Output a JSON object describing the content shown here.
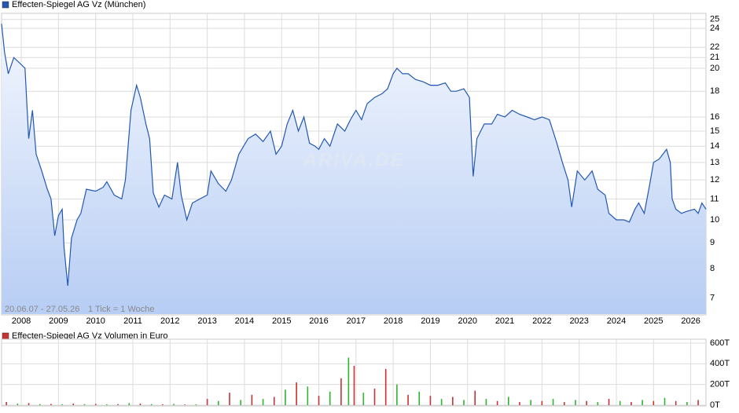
{
  "chart_data": [
    {
      "type": "line",
      "title": "Effecten-Spiegel AG Vz (München)",
      "color": "#2358b0",
      "area": true,
      "log_scale": true,
      "grid": true,
      "date_range": "20.06.07 - 27.05.26",
      "tick_note": "1 Tick = 1 Woche",
      "watermark": "ARIVA.DE",
      "xlim": [
        2007.47,
        2026.41
      ],
      "xticks": [
        2008,
        2009,
        2010,
        2011,
        2012,
        2013,
        2014,
        2015,
        2016,
        2017,
        2018,
        2019,
        2020,
        2021,
        2022,
        2023,
        2024,
        2025,
        2026
      ],
      "ylim": [
        6.5,
        25.7
      ],
      "yticks": [
        7,
        8,
        9,
        10,
        11,
        12,
        13,
        14,
        15,
        16,
        18,
        20,
        21,
        22,
        24,
        25
      ],
      "x": [
        2007.47,
        2007.55,
        2007.65,
        2007.8,
        2007.95,
        2008.1,
        2008.2,
        2008.3,
        2008.4,
        2008.55,
        2008.7,
        2008.8,
        2008.9,
        2009.0,
        2009.1,
        2009.15,
        2009.25,
        2009.35,
        2009.5,
        2009.6,
        2009.75,
        2010.0,
        2010.2,
        2010.3,
        2010.5,
        2010.7,
        2010.8,
        2010.95,
        2011.1,
        2011.2,
        2011.35,
        2011.45,
        2011.55,
        2011.7,
        2011.85,
        2012.05,
        2012.2,
        2012.3,
        2012.45,
        2012.6,
        2012.8,
        2013.0,
        2013.1,
        2013.3,
        2013.5,
        2013.65,
        2013.85,
        2014.1,
        2014.3,
        2014.5,
        2014.7,
        2014.85,
        2015.0,
        2015.15,
        2015.3,
        2015.45,
        2015.6,
        2015.75,
        2015.9,
        2016.0,
        2016.15,
        2016.3,
        2016.5,
        2016.7,
        2016.85,
        2017.0,
        2017.15,
        2017.3,
        2017.5,
        2017.7,
        2017.85,
        2018.0,
        2018.1,
        2018.25,
        2018.4,
        2018.6,
        2018.8,
        2019.0,
        2019.2,
        2019.4,
        2019.55,
        2019.7,
        2019.9,
        2020.05,
        2020.15,
        2020.25,
        2020.45,
        2020.65,
        2020.8,
        2021.0,
        2021.2,
        2021.4,
        2021.6,
        2021.8,
        2022.0,
        2022.2,
        2022.4,
        2022.55,
        2022.7,
        2022.8,
        2022.95,
        2023.15,
        2023.35,
        2023.5,
        2023.7,
        2023.8,
        2024.0,
        2024.2,
        2024.35,
        2024.5,
        2024.6,
        2024.75,
        2024.9,
        2025.0,
        2025.15,
        2025.35,
        2025.45,
        2025.5,
        2025.6,
        2025.75,
        2025.9,
        2026.1,
        2026.2,
        2026.3,
        2026.41
      ],
      "values": [
        24.5,
        21.5,
        19.5,
        21,
        20.5,
        20,
        14.5,
        16.5,
        13.5,
        12.5,
        11.5,
        11,
        9.3,
        10.2,
        10.5,
        8.8,
        7.4,
        9.2,
        10,
        10.3,
        11.5,
        11.4,
        11.6,
        11.9,
        11.2,
        11.0,
        12.0,
        16.5,
        18.5,
        17.5,
        15.5,
        14.5,
        11.3,
        10.6,
        11.2,
        11.0,
        13.0,
        11.2,
        10.0,
        10.8,
        11.0,
        11.2,
        12.5,
        11.8,
        11.4,
        12.0,
        13.5,
        14.5,
        14.8,
        14.3,
        15.0,
        13.5,
        14.0,
        15.5,
        16.5,
        15.0,
        16.0,
        14.2,
        14.0,
        13.8,
        14.5,
        14.0,
        15.5,
        15.0,
        15.8,
        16.5,
        15.8,
        17.0,
        17.5,
        17.8,
        18.2,
        19.5,
        20.0,
        19.5,
        19.5,
        19.0,
        18.8,
        18.5,
        18.5,
        18.7,
        18.0,
        18.0,
        18.2,
        17.5,
        12.2,
        14.5,
        15.5,
        15.5,
        16.2,
        16.0,
        16.5,
        16.2,
        16.0,
        15.8,
        16.0,
        15.8,
        14.2,
        13.0,
        12.0,
        10.6,
        12.5,
        12.0,
        12.5,
        11.5,
        11.2,
        10.3,
        10.0,
        10.0,
        9.9,
        10.5,
        10.8,
        10.3,
        11.8,
        13.0,
        13.2,
        13.8,
        13.0,
        11.0,
        10.5,
        10.3,
        10.4,
        10.5,
        10.3,
        10.8,
        10.5
      ]
    },
    {
      "type": "bar",
      "title": "Effecten-Spiegel AG Vz Volumen in Euro",
      "color": "#c83232",
      "grid": true,
      "xlim": [
        2007.47,
        2026.41
      ],
      "ylim": [
        0,
        600000
      ],
      "yticks": [
        {
          "value": 0,
          "label": "0T"
        },
        {
          "value": 200000,
          "label": "200T"
        },
        {
          "value": 400000,
          "label": "400T"
        },
        {
          "value": 600000,
          "label": "600T"
        }
      ],
      "x": [
        2007.6,
        2007.9,
        2008.2,
        2008.5,
        2008.8,
        2009.1,
        2009.4,
        2009.7,
        2010.0,
        2010.3,
        2010.6,
        2010.9,
        2011.2,
        2011.5,
        2011.8,
        2012.1,
        2012.4,
        2012.7,
        2013.0,
        2013.3,
        2013.6,
        2013.9,
        2014.2,
        2014.5,
        2014.8,
        2015.1,
        2015.4,
        2015.7,
        2016.0,
        2016.3,
        2016.6,
        2016.8,
        2016.95,
        2017.2,
        2017.5,
        2017.8,
        2018.1,
        2018.4,
        2018.7,
        2019.0,
        2019.3,
        2019.6,
        2019.9,
        2020.2,
        2020.5,
        2020.8,
        2021.1,
        2021.4,
        2021.7,
        2022.0,
        2022.3,
        2022.6,
        2022.9,
        2023.2,
        2023.5,
        2023.8,
        2024.1,
        2024.4,
        2024.7,
        2025.0,
        2025.3,
        2025.6,
        2025.9,
        2026.2
      ],
      "values": [
        30000,
        15000,
        20000,
        10000,
        12000,
        8000,
        15000,
        10000,
        12000,
        8000,
        10000,
        20000,
        15000,
        10000,
        8000,
        12000,
        6000,
        8000,
        60000,
        40000,
        120000,
        50000,
        100000,
        60000,
        80000,
        150000,
        220000,
        180000,
        90000,
        130000,
        260000,
        460000,
        380000,
        120000,
        160000,
        350000,
        200000,
        100000,
        130000,
        90000,
        60000,
        80000,
        50000,
        140000,
        60000,
        40000,
        80000,
        30000,
        50000,
        40000,
        60000,
        30000,
        50000,
        40000,
        30000,
        60000,
        40000,
        30000,
        50000,
        40000,
        70000,
        40000,
        30000,
        50000
      ],
      "bar_colors": [
        "#c83232",
        "#2fb52f",
        "#c83232",
        "#2fb52f",
        "#c83232",
        "#2fb52f",
        "#c83232",
        "#2fb52f",
        "#c83232",
        "#2fb52f",
        "#c83232",
        "#2fb52f",
        "#c83232",
        "#2fb52f",
        "#c83232",
        "#2fb52f",
        "#c83232",
        "#2fb52f",
        "#c83232",
        "#2fb52f",
        "#c83232",
        "#2fb52f",
        "#c83232",
        "#2fb52f",
        "#c83232",
        "#2fb52f",
        "#c83232",
        "#2fb52f",
        "#c83232",
        "#2fb52f",
        "#c83232",
        "#2fb52f",
        "#c83232",
        "#2fb52f",
        "#c83232",
        "#c83232",
        "#2fb52f",
        "#c83232",
        "#2fb52f",
        "#c83232",
        "#2fb52f",
        "#c83232",
        "#2fb52f",
        "#c83232",
        "#2fb52f",
        "#c83232",
        "#2fb52f",
        "#c83232",
        "#2fb52f",
        "#c83232",
        "#2fb52f",
        "#c83232",
        "#2fb52f",
        "#c83232",
        "#2fb52f",
        "#c83232",
        "#2fb52f",
        "#c83232",
        "#2fb52f",
        "#c83232",
        "#2fb52f",
        "#c83232",
        "#2fb52f",
        "#c83232"
      ]
    }
  ]
}
